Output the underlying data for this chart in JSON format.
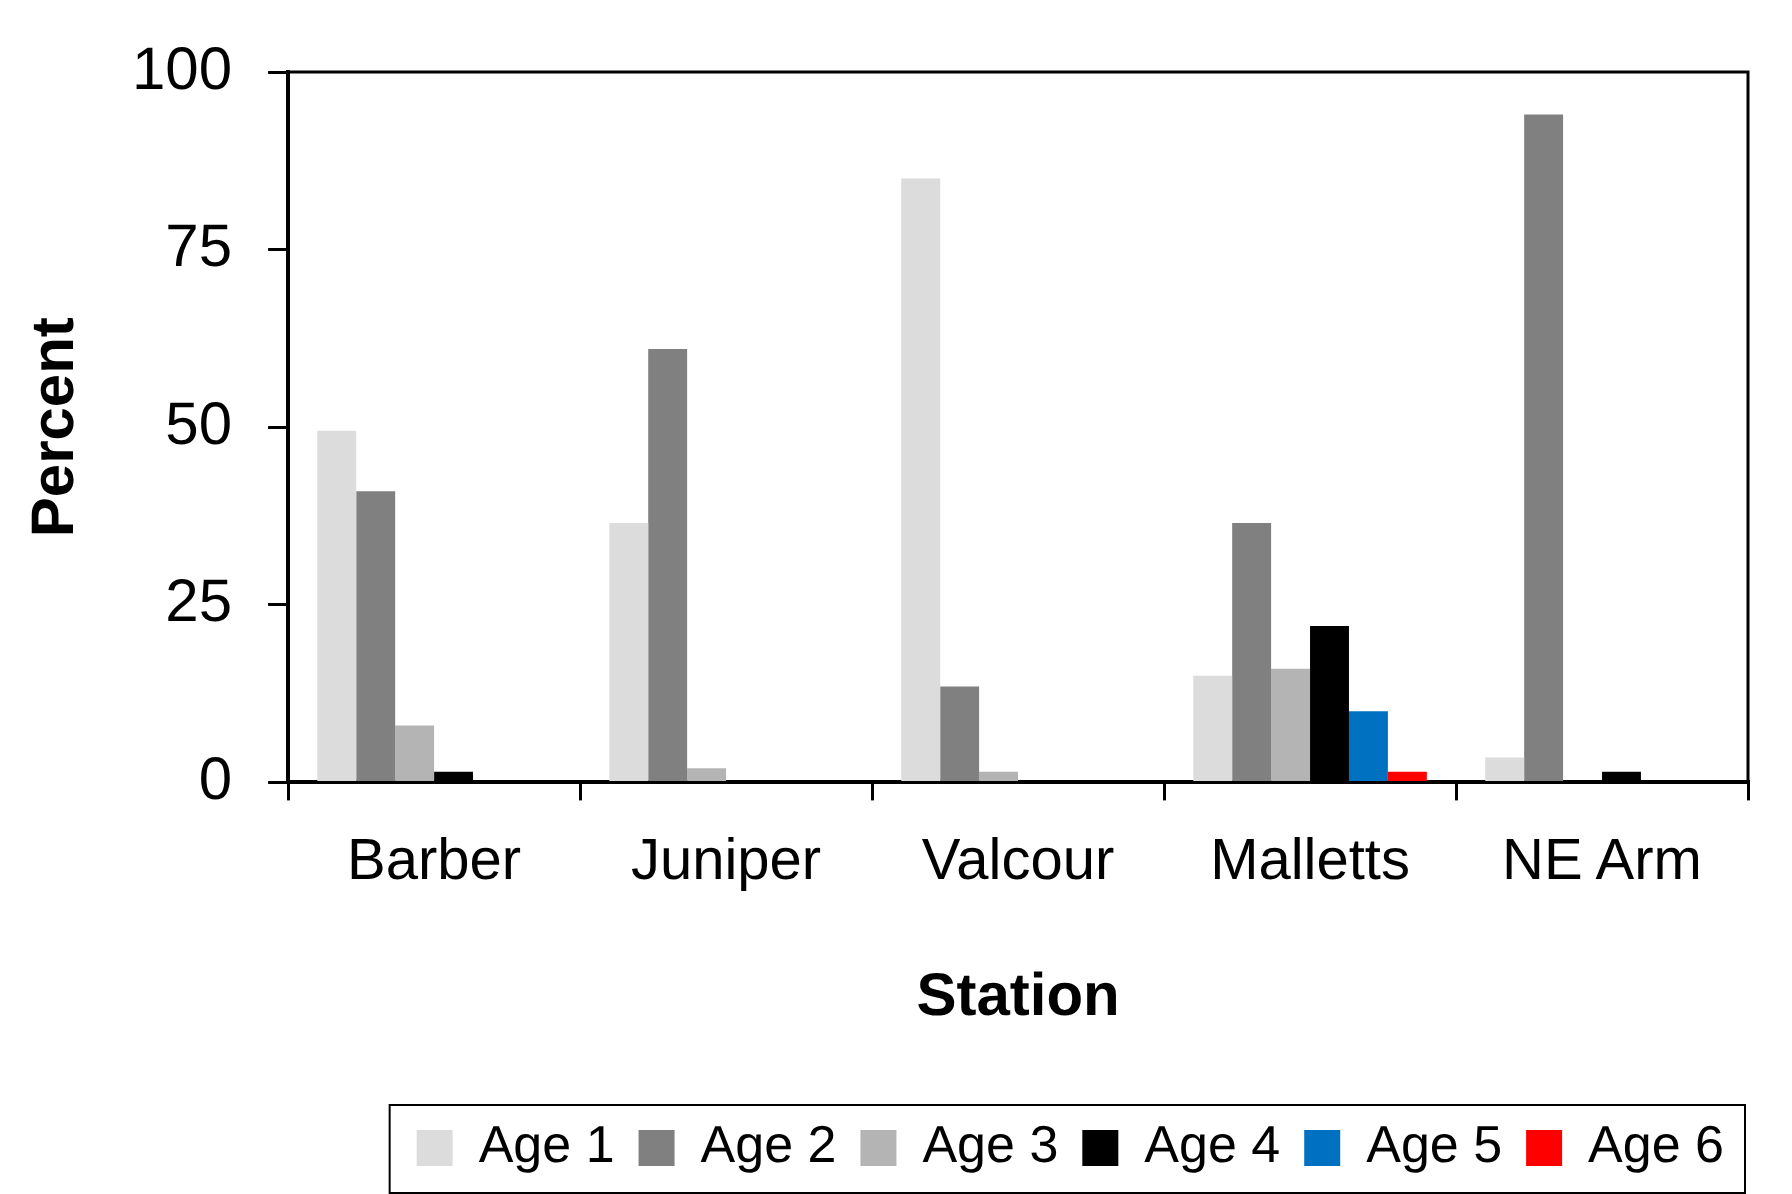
{
  "chart_data": {
    "type": "bar",
    "xlabel": "Station",
    "ylabel": "Percent",
    "categories": [
      "Barber",
      "Juniper",
      "Valcour",
      "Malletts",
      "NE Arm"
    ],
    "series": [
      {
        "name": "Age 1",
        "color": "#dcdcdc",
        "values": [
          49.5,
          36.5,
          85,
          15,
          3.5
        ]
      },
      {
        "name": "Age 2",
        "color": "#808080",
        "values": [
          41,
          61,
          13.5,
          36.5,
          94
        ]
      },
      {
        "name": "Age 3",
        "color": "#b4b4b4",
        "values": [
          8,
          2,
          1.5,
          16,
          0
        ]
      },
      {
        "name": "Age 4",
        "color": "#000000",
        "values": [
          1.5,
          0,
          0,
          22,
          1.5
        ]
      },
      {
        "name": "Age 5",
        "color": "#0070c0",
        "values": [
          0,
          0,
          0,
          10,
          0
        ]
      },
      {
        "name": "Age 6",
        "color": "#ff0000",
        "values": [
          0,
          0,
          0,
          1.5,
          0
        ]
      }
    ],
    "ylim": [
      0,
      100
    ],
    "yticks": [
      0,
      25,
      50,
      75,
      100
    ],
    "grid": false,
    "legend": "bottom"
  }
}
